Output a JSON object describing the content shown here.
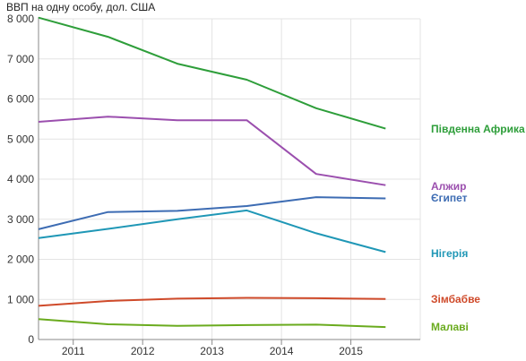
{
  "chart_data": {
    "type": "line",
    "title": "ВВП на одну особу, дол. США",
    "xlabel": "",
    "ylabel": "",
    "x_ticks": [
      "2011",
      "2012",
      "2013",
      "2014",
      "2015"
    ],
    "y_ticks": [
      "0",
      "1 000",
      "2 000",
      "3 000",
      "4 000",
      "5 000",
      "6 000",
      "7 000",
      "8 000"
    ],
    "ylim": [
      0,
      8000
    ],
    "xlim": [
      2010.5,
      2016.0
    ],
    "grid": true,
    "series": [
      {
        "name": "Південна Африка",
        "color": "#2e9e3a",
        "x": [
          2010.5,
          2011.5,
          2012.5,
          2013.5,
          2014.5,
          2015.5
        ],
        "values": [
          8030,
          7550,
          6880,
          6480,
          5770,
          5260
        ]
      },
      {
        "name": "Алжир",
        "color": "#9b4fae",
        "x": [
          2010.5,
          2011.5,
          2012.5,
          2013.5,
          2014.5,
          2015.5
        ],
        "values": [
          5430,
          5560,
          5470,
          5470,
          4130,
          3850
        ]
      },
      {
        "name": "Єгипет",
        "color": "#3d6cb3",
        "x": [
          2010.5,
          2011.5,
          2012.5,
          2013.5,
          2014.5,
          2015.5
        ],
        "values": [
          2750,
          3180,
          3210,
          3330,
          3550,
          3520
        ]
      },
      {
        "name": "Нігерія",
        "color": "#1f97b6",
        "x": [
          2010.5,
          2011.5,
          2012.5,
          2013.5,
          2014.5,
          2015.5
        ],
        "values": [
          2530,
          2760,
          3000,
          3220,
          2650,
          2180
        ]
      },
      {
        "name": "Зімбабве",
        "color": "#cf4a2a",
        "x": [
          2010.5,
          2011.5,
          2012.5,
          2013.5,
          2014.5,
          2015.5
        ],
        "values": [
          840,
          960,
          1020,
          1040,
          1030,
          1010
        ]
      },
      {
        "name": "Малаві",
        "color": "#6aab1e",
        "x": [
          2010.5,
          2011.5,
          2012.5,
          2013.5,
          2014.5,
          2015.5
        ],
        "values": [
          510,
          380,
          340,
          360,
          370,
          310
        ]
      }
    ]
  }
}
